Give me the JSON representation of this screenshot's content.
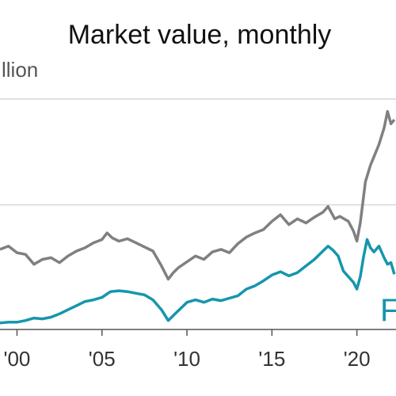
{
  "chart_data": {
    "type": "line",
    "title": "Market value, monthly",
    "unit_label": "llion",
    "xlim": [
      1999.0,
      2022.3
    ],
    "ylim": [
      -5,
      270
    ],
    "gridlines": [
      142,
      270
    ],
    "x_ticks": [
      {
        "x": 2000,
        "label": "'00"
      },
      {
        "x": 2005,
        "label": "'05"
      },
      {
        "x": 2010,
        "label": "'10"
      },
      {
        "x": 2015,
        "label": "'15"
      },
      {
        "x": 2020,
        "label": "'20"
      }
    ],
    "series": [
      {
        "name": "",
        "color": "#808080",
        "points": [
          [
            1999.0,
            88
          ],
          [
            1999.5,
            92
          ],
          [
            2000.0,
            84
          ],
          [
            2000.5,
            82
          ],
          [
            2001.0,
            70
          ],
          [
            2001.5,
            76
          ],
          [
            2002.0,
            78
          ],
          [
            2002.5,
            72
          ],
          [
            2003.0,
            80
          ],
          [
            2003.5,
            86
          ],
          [
            2004.0,
            90
          ],
          [
            2004.5,
            96
          ],
          [
            2005.0,
            100
          ],
          [
            2005.3,
            108
          ],
          [
            2005.6,
            102
          ],
          [
            2006.0,
            98
          ],
          [
            2006.5,
            101
          ],
          [
            2007.0,
            96
          ],
          [
            2007.5,
            91
          ],
          [
            2008.0,
            86
          ],
          [
            2008.5,
            68
          ],
          [
            2008.9,
            52
          ],
          [
            2009.2,
            60
          ],
          [
            2009.5,
            66
          ],
          [
            2010.0,
            73
          ],
          [
            2010.5,
            80
          ],
          [
            2011.0,
            76
          ],
          [
            2011.5,
            85
          ],
          [
            2012.0,
            88
          ],
          [
            2012.5,
            84
          ],
          [
            2013.0,
            95
          ],
          [
            2013.5,
            103
          ],
          [
            2014.0,
            108
          ],
          [
            2014.5,
            112
          ],
          [
            2015.0,
            122
          ],
          [
            2015.5,
            130
          ],
          [
            2016.0,
            118
          ],
          [
            2016.5,
            125
          ],
          [
            2017.0,
            120
          ],
          [
            2017.5,
            127
          ],
          [
            2018.0,
            133
          ],
          [
            2018.3,
            140
          ],
          [
            2018.7,
            125
          ],
          [
            2019.0,
            128
          ],
          [
            2019.5,
            122
          ],
          [
            2019.8,
            110
          ],
          [
            2020.0,
            98
          ],
          [
            2020.2,
            120
          ],
          [
            2020.5,
            170
          ],
          [
            2020.8,
            190
          ],
          [
            2021.0,
            200
          ],
          [
            2021.3,
            215
          ],
          [
            2021.6,
            235
          ],
          [
            2021.8,
            255
          ],
          [
            2022.0,
            240
          ],
          [
            2022.2,
            245
          ]
        ]
      },
      {
        "name": "F",
        "color": "#1596ad",
        "points": [
          [
            1999.0,
            -1
          ],
          [
            1999.5,
            0
          ],
          [
            2000.0,
            0
          ],
          [
            2000.5,
            2
          ],
          [
            2001.0,
            5
          ],
          [
            2001.5,
            4
          ],
          [
            2002.0,
            6
          ],
          [
            2002.5,
            10
          ],
          [
            2003.0,
            15
          ],
          [
            2003.5,
            20
          ],
          [
            2004.0,
            25
          ],
          [
            2004.5,
            27
          ],
          [
            2005.0,
            30
          ],
          [
            2005.5,
            37
          ],
          [
            2006.0,
            38
          ],
          [
            2006.5,
            37
          ],
          [
            2007.0,
            35
          ],
          [
            2007.5,
            33
          ],
          [
            2008.0,
            27
          ],
          [
            2008.5,
            15
          ],
          [
            2008.9,
            2
          ],
          [
            2009.3,
            10
          ],
          [
            2009.7,
            18
          ],
          [
            2010.0,
            24
          ],
          [
            2010.5,
            27
          ],
          [
            2011.0,
            24
          ],
          [
            2011.5,
            28
          ],
          [
            2012.0,
            26
          ],
          [
            2012.5,
            29
          ],
          [
            2013.0,
            32
          ],
          [
            2013.5,
            40
          ],
          [
            2014.0,
            44
          ],
          [
            2014.5,
            50
          ],
          [
            2015.0,
            57
          ],
          [
            2015.5,
            61
          ],
          [
            2016.0,
            56
          ],
          [
            2016.5,
            60
          ],
          [
            2017.0,
            68
          ],
          [
            2017.5,
            76
          ],
          [
            2018.0,
            86
          ],
          [
            2018.3,
            92
          ],
          [
            2018.6,
            87
          ],
          [
            2018.9,
            80
          ],
          [
            2019.2,
            62
          ],
          [
            2019.5,
            55
          ],
          [
            2019.8,
            48
          ],
          [
            2020.0,
            40
          ],
          [
            2020.2,
            55
          ],
          [
            2020.4,
            80
          ],
          [
            2020.6,
            100
          ],
          [
            2020.8,
            90
          ],
          [
            2021.0,
            85
          ],
          [
            2021.3,
            92
          ],
          [
            2021.6,
            78
          ],
          [
            2021.8,
            70
          ],
          [
            2022.0,
            72
          ],
          [
            2022.2,
            58
          ]
        ]
      }
    ]
  }
}
